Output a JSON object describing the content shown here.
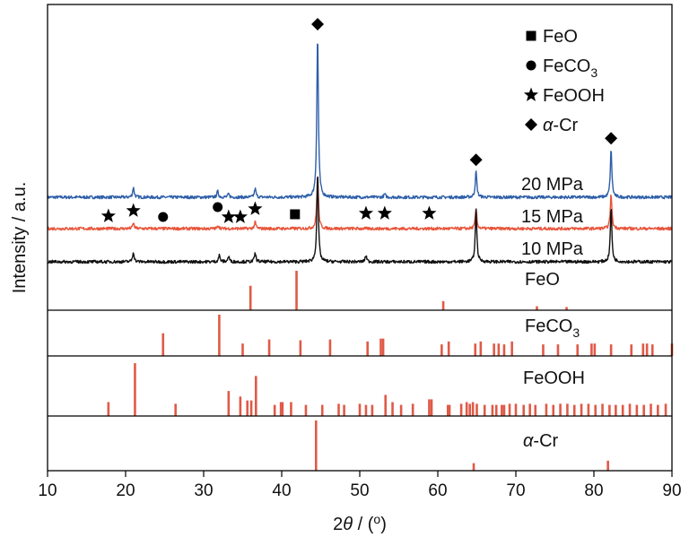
{
  "chart_data": {
    "type": "line",
    "xlabel_parts": [
      "2",
      "θ",
      " / (",
      "o",
      ")"
    ],
    "ylabel": "Intensity / a.u.",
    "xlim": [
      10,
      90
    ],
    "xticks": [
      "10",
      "20",
      "30",
      "40",
      "50",
      "60",
      "70",
      "80",
      "90"
    ],
    "grid": false,
    "series": [
      {
        "name": "20 MPa",
        "color": "#2e5fa8",
        "peaks": [
          [
            21.0,
            0.45
          ],
          [
            31.8,
            0.28
          ],
          [
            33.2,
            0.15
          ],
          [
            36.6,
            0.4
          ],
          [
            44.6,
            7.5
          ],
          [
            53.2,
            0.15
          ],
          [
            64.9,
            1.2
          ],
          [
            82.2,
            2.2
          ]
        ]
      },
      {
        "name": "15 MPa",
        "color": "#e8543a",
        "peaks": [
          [
            21.0,
            0.25
          ],
          [
            31.9,
            0.15
          ],
          [
            36.6,
            0.3
          ],
          [
            44.6,
            2.5
          ],
          [
            64.9,
            0.9
          ],
          [
            82.2,
            1.6
          ]
        ]
      },
      {
        "name": "10 MPa",
        "color": "#111111",
        "peaks": [
          [
            21.0,
            0.45
          ],
          [
            32.0,
            0.3
          ],
          [
            33.2,
            0.25
          ],
          [
            36.6,
            0.4
          ],
          [
            44.6,
            4.1
          ],
          [
            50.8,
            0.3
          ],
          [
            64.9,
            2.45
          ],
          [
            82.2,
            2.5
          ]
        ]
      }
    ],
    "reference_patterns": [
      {
        "name": "FeO",
        "lines": [
          [
            36.0,
            0.62
          ],
          [
            41.9,
            1.0
          ],
          [
            60.7,
            0.23
          ],
          [
            72.7,
            0.1
          ],
          [
            76.5,
            0.08
          ]
        ]
      },
      {
        "name": "FeCO3",
        "label_main": "FeCO",
        "label_sub": "3",
        "lines": [
          [
            24.8,
            0.55
          ],
          [
            32.0,
            1.0
          ],
          [
            35.0,
            0.3
          ],
          [
            38.4,
            0.4
          ],
          [
            42.4,
            0.38
          ],
          [
            46.2,
            0.4
          ],
          [
            51.0,
            0.35
          ],
          [
            52.7,
            0.42
          ],
          [
            53.0,
            0.42
          ],
          [
            60.5,
            0.28
          ],
          [
            61.4,
            0.35
          ],
          [
            64.8,
            0.3
          ],
          [
            65.5,
            0.35
          ],
          [
            67.2,
            0.3
          ],
          [
            67.8,
            0.3
          ],
          [
            68.5,
            0.28
          ],
          [
            69.5,
            0.35
          ],
          [
            73.5,
            0.28
          ],
          [
            75.4,
            0.28
          ],
          [
            77.9,
            0.28
          ],
          [
            79.7,
            0.3
          ],
          [
            80.1,
            0.3
          ],
          [
            82.2,
            0.28
          ],
          [
            84.8,
            0.28
          ],
          [
            86.3,
            0.3
          ],
          [
            86.8,
            0.3
          ],
          [
            87.5,
            0.28
          ],
          [
            90.0,
            0.3
          ]
        ]
      },
      {
        "name": "FeOOH",
        "lines": [
          [
            17.8,
            0.25
          ],
          [
            21.2,
            0.95
          ],
          [
            26.4,
            0.22
          ],
          [
            33.2,
            0.45
          ],
          [
            34.7,
            0.35
          ],
          [
            35.6,
            0.28
          ],
          [
            36.1,
            0.28
          ],
          [
            36.7,
            0.72
          ],
          [
            39.1,
            0.2
          ],
          [
            39.9,
            0.25
          ],
          [
            40.1,
            0.25
          ],
          [
            41.2,
            0.25
          ],
          [
            43.1,
            0.2
          ],
          [
            45.2,
            0.2
          ],
          [
            47.3,
            0.22
          ],
          [
            48.0,
            0.2
          ],
          [
            50.0,
            0.22
          ],
          [
            50.8,
            0.2
          ],
          [
            51.6,
            0.2
          ],
          [
            53.3,
            0.38
          ],
          [
            54.2,
            0.25
          ],
          [
            55.3,
            0.2
          ],
          [
            56.8,
            0.22
          ],
          [
            58.9,
            0.3
          ],
          [
            59.2,
            0.3
          ],
          [
            61.3,
            0.2
          ],
          [
            61.5,
            0.2
          ],
          [
            63.0,
            0.22
          ],
          [
            63.7,
            0.25
          ],
          [
            64.1,
            0.22
          ],
          [
            64.5,
            0.25
          ],
          [
            65.0,
            0.22
          ],
          [
            66.0,
            0.2
          ],
          [
            67.0,
            0.2
          ],
          [
            67.5,
            0.2
          ],
          [
            68.2,
            0.2
          ],
          [
            68.5,
            0.2
          ],
          [
            69.2,
            0.22
          ],
          [
            70.0,
            0.22
          ],
          [
            71.0,
            0.2
          ],
          [
            71.8,
            0.22
          ],
          [
            72.5,
            0.2
          ],
          [
            73.9,
            0.22
          ],
          [
            74.8,
            0.2
          ],
          [
            75.7,
            0.22
          ],
          [
            76.6,
            0.22
          ],
          [
            77.5,
            0.2
          ],
          [
            78.4,
            0.22
          ],
          [
            79.3,
            0.22
          ],
          [
            80.2,
            0.2
          ],
          [
            81.1,
            0.22
          ],
          [
            82.0,
            0.2
          ],
          [
            82.8,
            0.2
          ],
          [
            83.7,
            0.2
          ],
          [
            84.6,
            0.22
          ],
          [
            85.5,
            0.2
          ],
          [
            86.4,
            0.2
          ],
          [
            87.3,
            0.22
          ],
          [
            88.2,
            0.2
          ],
          [
            89.2,
            0.22
          ]
        ]
      },
      {
        "name": "α-Cr",
        "label_italic": "α",
        "label_rest": "-Cr",
        "lines": [
          [
            44.4,
            1.0
          ],
          [
            64.6,
            0.15
          ],
          [
            81.8,
            0.2
          ]
        ]
      }
    ],
    "phase_markers": [
      {
        "phase": "FeO",
        "symbol": "square",
        "x": [
          41.7
        ]
      },
      {
        "phase": "FeCO3",
        "symbol": "circle",
        "x": [
          24.8,
          31.8
        ]
      },
      {
        "phase": "FeOOH",
        "symbol": "star",
        "x": [
          17.8,
          21.0,
          33.2,
          34.7,
          36.6,
          50.8,
          53.2,
          58.9
        ]
      },
      {
        "phase": "α-Cr",
        "symbol": "diamond",
        "x": [
          44.6,
          64.9,
          82.2
        ]
      }
    ],
    "legend": [
      {
        "symbol": "square",
        "label": "FeO"
      },
      {
        "symbol": "circle",
        "label": "FeCO",
        "sub": "3"
      },
      {
        "symbol": "star",
        "label": "FeOOH"
      },
      {
        "symbol": "diamond",
        "italic": "α",
        "label": "-Cr"
      }
    ],
    "legend_position": "top-right",
    "trace_color": "#e05a47",
    "ref_color": "#e05a47"
  }
}
